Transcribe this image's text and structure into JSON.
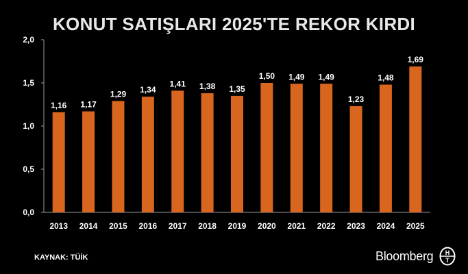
{
  "title": "KONUT SATIŞLARI 2025'TE REKOR KIRDI",
  "source": "KAYNAK: TÜİK",
  "brand": {
    "name": "Bloomberg",
    "logo_letters": [
      "H",
      "T"
    ]
  },
  "colors": {
    "background": "#000000",
    "bar": "#d9661f",
    "text": "#ffffff",
    "title": "#e8e8e8"
  },
  "chart_data": {
    "type": "bar",
    "categories": [
      "2013",
      "2014",
      "2015",
      "2016",
      "2017",
      "2018",
      "2019",
      "2020",
      "2021",
      "2022",
      "2023",
      "2024",
      "2025"
    ],
    "values": [
      1.16,
      1.17,
      1.29,
      1.34,
      1.41,
      1.38,
      1.35,
      1.5,
      1.49,
      1.49,
      1.23,
      1.48,
      1.69
    ],
    "value_labels": [
      "1,16",
      "1,17",
      "1,29",
      "1,34",
      "1,41",
      "1,38",
      "1,35",
      "1,50",
      "1,49",
      "1,49",
      "1,23",
      "1,48",
      "1,69"
    ],
    "yticks": [
      0.0,
      0.5,
      1.0,
      1.5,
      2.0
    ],
    "ytick_labels": [
      "0,0",
      "0,5",
      "1,0",
      "1,5",
      "2,0"
    ],
    "ylim": [
      0,
      2
    ],
    "grid": false,
    "legend": "none",
    "xlabel": "",
    "ylabel": ""
  }
}
